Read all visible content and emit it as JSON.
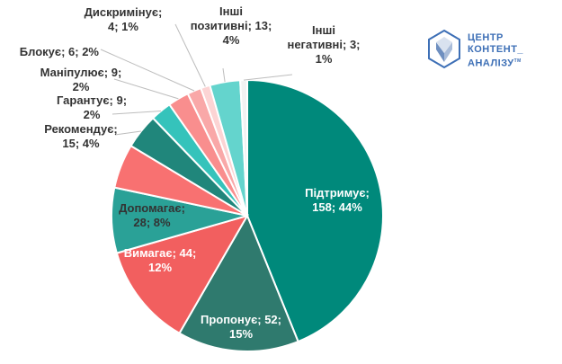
{
  "chart_data": {
    "type": "pie",
    "title": "",
    "slices": [
      {
        "label": "Підтримує",
        "value": 158,
        "percent": "44%",
        "color": "#00897b"
      },
      {
        "label": "Пропонує",
        "value": 52,
        "percent": "15%",
        "color": "#2f7a6e"
      },
      {
        "label": "Вимагає",
        "value": 44,
        "percent": "12%",
        "color": "#f25f5f"
      },
      {
        "label": "Допомагає",
        "value": 28,
        "percent": "8%",
        "color": "#2aa197"
      },
      {
        "label": "",
        "value": 19,
        "percent": "",
        "color": "#f87171"
      },
      {
        "label": "Рекомендує",
        "value": 15,
        "percent": "4%",
        "color": "#20867b"
      },
      {
        "label": "Гарантує",
        "value": 9,
        "percent": "2%",
        "color": "#35c3bb"
      },
      {
        "label": "Маніпулює",
        "value": 9,
        "percent": "2%",
        "color": "#f98e8e"
      },
      {
        "label": "Блокує",
        "value": 6,
        "percent": "2%",
        "color": "#f9a8a8"
      },
      {
        "label": "Дискримінує",
        "value": 4,
        "percent": "1%",
        "color": "#fcd4d4"
      },
      {
        "label": "Інші позитивні",
        "value": 13,
        "percent": "4%",
        "color": "#64d4cd"
      },
      {
        "label": "Інші негативні",
        "value": 3,
        "percent": "1%",
        "color": "#f2f2f2"
      }
    ],
    "labels": [
      {
        "ref": 0,
        "lines": [
          "Підтримує;",
          "158; 44%"
        ],
        "color": "#ffffff"
      },
      {
        "ref": 1,
        "lines": [
          "Пропонує; 52;",
          "15%"
        ],
        "color": "#ffffff"
      },
      {
        "ref": 2,
        "lines": [
          "Вимагає; 44;",
          "12%"
        ],
        "color": "#ffffff"
      },
      {
        "ref": 3,
        "lines": [
          "Допомагає;",
          "28; 8%"
        ],
        "color": "#333333"
      },
      {
        "ref": 5,
        "lines": [
          "Рекомендує;",
          "15; 4%"
        ],
        "color": "#333333"
      },
      {
        "ref": 6,
        "lines": [
          "Гарантує; 9;",
          "2%"
        ],
        "color": "#333333"
      },
      {
        "ref": 7,
        "lines": [
          "Маніпулює; 9;",
          "2%"
        ],
        "color": "#333333"
      },
      {
        "ref": 8,
        "lines": [
          "Блокує; 6; 2%"
        ],
        "color": "#333333"
      },
      {
        "ref": 9,
        "lines": [
          "Дискримінує;",
          "4; 1%"
        ],
        "color": "#333333"
      },
      {
        "ref": 10,
        "lines": [
          "Інші",
          "позитивні; 13;",
          "4%"
        ],
        "color": "#333333"
      },
      {
        "ref": 11,
        "lines": [
          "Інші",
          "негативні; 3;",
          "1%"
        ],
        "color": "#333333"
      }
    ]
  },
  "logo": {
    "line1": "ЦЕНТР",
    "line2": "КОНТЕНТ_",
    "line3": "АНАЛІЗУ",
    "tm": "TM"
  }
}
